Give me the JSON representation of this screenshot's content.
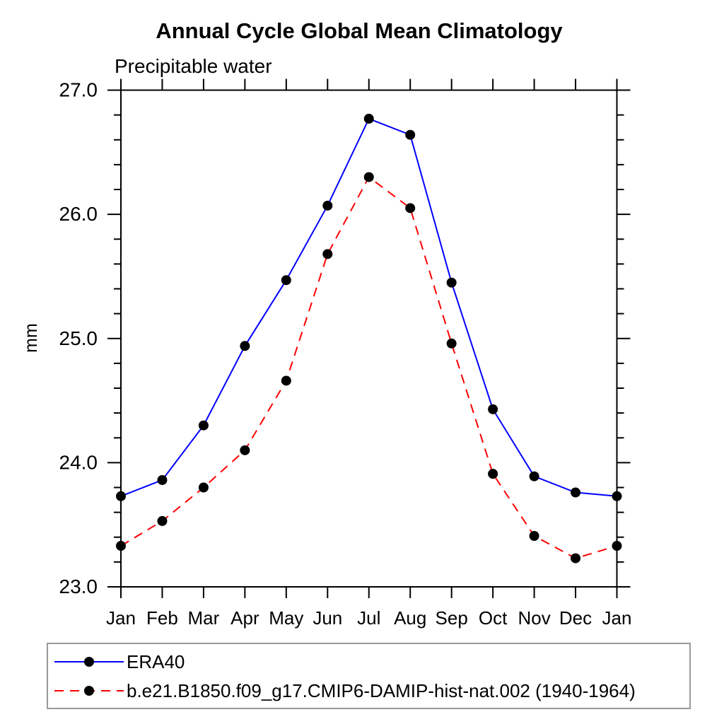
{
  "chart_data": {
    "type": "line",
    "title": "Annual Cycle Global Mean Climatology",
    "subtitle": "Precipitable water",
    "ylabel": "mm",
    "categories": [
      "Jan",
      "Feb",
      "Mar",
      "Apr",
      "May",
      "Jun",
      "Jul",
      "Aug",
      "Sep",
      "Oct",
      "Nov",
      "Dec",
      "Jan"
    ],
    "ylim": [
      23.0,
      27.0
    ],
    "ytick_labels": [
      "23.0",
      "24.0",
      "25.0",
      "26.0",
      "27.0"
    ],
    "ytick_values": [
      23.0,
      24.0,
      25.0,
      26.0,
      27.0
    ],
    "y_minor_step": 0.2,
    "grid": false,
    "legend_position": "bottom",
    "frame_color": "#000000",
    "marker_color": "#000000",
    "series": [
      {
        "name": "ERA40",
        "color": "#0000ff",
        "style": "solid",
        "marker": "circle",
        "values": [
          23.73,
          23.86,
          24.3,
          24.94,
          25.47,
          26.07,
          26.77,
          26.64,
          25.45,
          24.43,
          23.89,
          23.76,
          23.73
        ]
      },
      {
        "name": "b.e21.B1850.f09_g17.CMIP6-DAMIP-hist-nat.002 (1940-1964)",
        "color": "#ff0000",
        "style": "dashed",
        "marker": "circle",
        "values": [
          23.33,
          23.53,
          23.8,
          24.1,
          24.66,
          25.68,
          26.3,
          26.05,
          24.96,
          23.91,
          23.41,
          23.23,
          23.33
        ]
      }
    ]
  }
}
